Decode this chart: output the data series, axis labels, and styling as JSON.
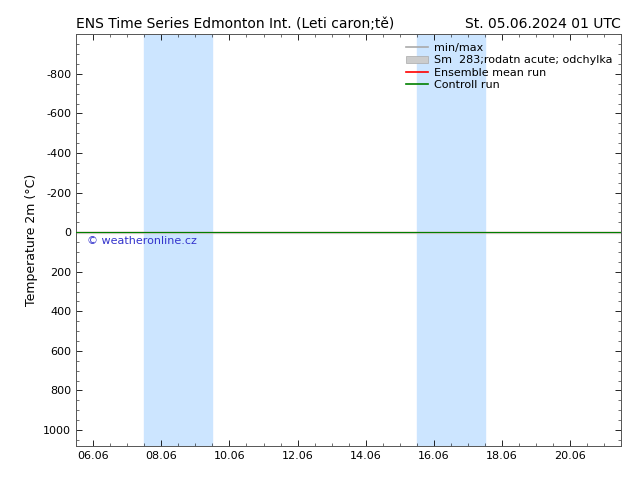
{
  "title": "ENS Time Series Edmonton Int. (Leti caron;tě)",
  "date_label": "St. 05.06.2024 01 UTC",
  "ylabel": "Temperature 2m (°C)",
  "yticks": [
    -800,
    -600,
    -400,
    -200,
    0,
    200,
    400,
    600,
    800,
    1000
  ],
  "ylim_top": -1000,
  "ylim_bottom": 1080,
  "xtick_labels": [
    "06.06",
    "08.06",
    "10.06",
    "12.06",
    "14.06",
    "16.06",
    "18.06",
    "20.06"
  ],
  "xtick_positions": [
    0,
    2,
    4,
    6,
    8,
    10,
    12,
    14
  ],
  "xlim_min": -0.5,
  "xlim_max": 15.5,
  "shaded_bands": [
    {
      "x_start": 1.5,
      "x_end": 3.5
    },
    {
      "x_start": 9.5,
      "x_end": 11.5
    }
  ],
  "shaded_color": "#cce5ff",
  "ensemble_mean_color": "#ff0000",
  "control_run_color": "#008000",
  "min_max_color": "#aaaaaa",
  "std_dev_color": "#cccccc",
  "background_color": "#ffffff",
  "watermark_text": "© weatheronline.cz",
  "watermark_color": "#3333cc",
  "title_fontsize": 10,
  "axis_label_fontsize": 9,
  "tick_fontsize": 8,
  "legend_fontsize": 8
}
